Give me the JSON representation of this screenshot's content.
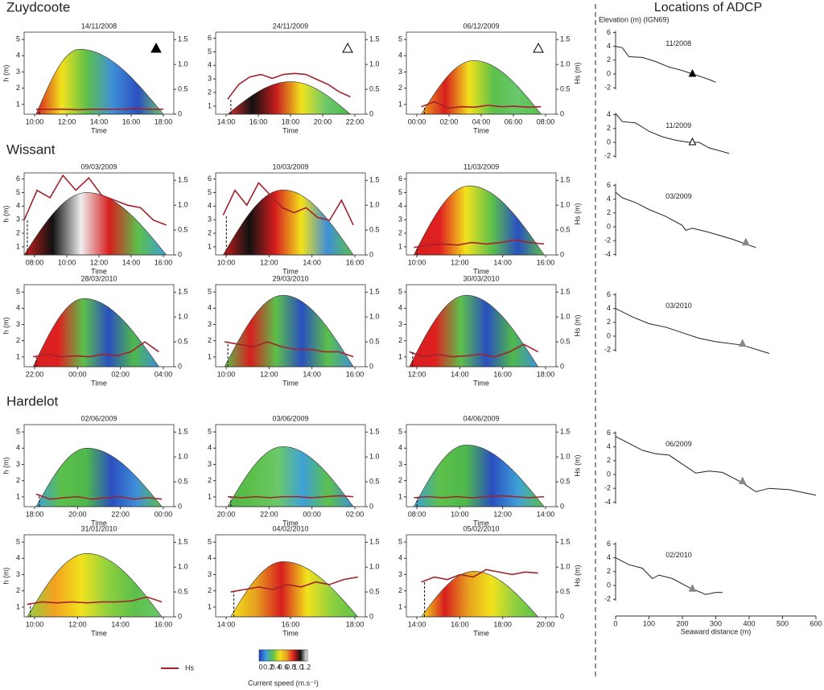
{
  "sections": [
    "Zuydcoote",
    "Wissant",
    "Hardelot"
  ],
  "panels": [
    {
      "date": "14/11/2008",
      "xticks": [
        "10:00",
        "12:00",
        "14:00",
        "16:00",
        "18:00"
      ],
      "yticks": [
        1,
        2,
        3,
        4,
        5
      ],
      "peak": 4.4,
      "env": [
        0.08,
        0.37,
        0.93
      ],
      "colors": [
        "#d71e1e",
        "#f2e21c",
        "#5cc04a",
        "#3f8fd8",
        "#2a4fc0",
        "#6cc86a"
      ],
      "marker": "filled",
      "hs": [
        0.1,
        0.1,
        0.1,
        0.09,
        0.1,
        0.1,
        0.1,
        0.11,
        0.1,
        0.1
      ]
    },
    {
      "date": "24/11/2009",
      "xticks": [
        "14:00",
        "16:00",
        "18:00",
        "20:00",
        "22:00"
      ],
      "yticks": [
        1,
        2,
        3,
        4,
        5,
        6
      ],
      "peak": 2.8,
      "env": [
        0.08,
        0.5,
        0.9
      ],
      "colors": [
        "#e03030",
        "#111111",
        "#c81e1e",
        "#f2e21c",
        "#6cc86a",
        "#4fb84c"
      ],
      "marker": "open",
      "hs": [
        0.3,
        0.6,
        0.75,
        0.8,
        0.72,
        0.8,
        0.82,
        0.8,
        0.7,
        0.6,
        0.45,
        0.35
      ]
    },
    {
      "date": "06/12/2009",
      "xticks": [
        "00:00",
        "02:00",
        "04:00",
        "06:00",
        "08:00"
      ],
      "yticks": [
        1,
        2,
        3,
        4,
        5
      ],
      "peak": 3.7,
      "env": [
        0.1,
        0.45,
        0.9
      ],
      "colors": [
        "#e8a020",
        "#d71e1e",
        "#f2e21c",
        "#5cc04a",
        "#68c86c",
        "#5cc04a"
      ],
      "marker": "open",
      "hs": [
        0.15,
        0.25,
        0.12,
        0.15,
        0.14,
        0.18,
        0.15,
        0.16,
        0.14,
        0.15
      ]
    },
    {
      "date": "09/03/2009",
      "xticks": [
        "08:00",
        "10:00",
        "12:00",
        "14:00",
        "16:00"
      ],
      "yticks": [
        1,
        2,
        3,
        4,
        5,
        6
      ],
      "peak": 5,
      "env": [
        0.0,
        0.42,
        0.95
      ],
      "colors": [
        "#c81e1e",
        "#111111",
        "#eeeeee",
        "#d71e1e",
        "#5cc04a",
        "#3f9fd8"
      ],
      "hs": [
        0.7,
        1.3,
        1.15,
        1.6,
        1.3,
        1.55,
        1.2,
        1.1,
        1.0,
        0.95,
        0.7,
        0.6
      ]
    },
    {
      "date": "10/03/2009",
      "xticks": [
        "10:00",
        "12:00",
        "14:00",
        "16:00"
      ],
      "yticks": [
        1,
        2,
        3,
        4,
        5,
        6
      ],
      "peak": 5.2,
      "env": [
        0.05,
        0.45,
        0.92
      ],
      "colors": [
        "#c81e1e",
        "#111111",
        "#d71e1e",
        "#f2e21c",
        "#3f8fd8",
        "#5cc04a"
      ],
      "hs": [
        0.8,
        1.3,
        1.0,
        1.45,
        1.2,
        0.95,
        0.85,
        0.95,
        0.75,
        0.7,
        1.1,
        0.6
      ]
    },
    {
      "date": "11/03/2009",
      "xticks": [
        "10:00",
        "12:00",
        "14:00",
        "16:00"
      ],
      "yticks": [
        1,
        2,
        3,
        4,
        5,
        6
      ],
      "peak": 5.5,
      "env": [
        0.05,
        0.42,
        0.92
      ],
      "colors": [
        "#d71e1e",
        "#e02020",
        "#f2e21c",
        "#5cc04a",
        "#2a4fc0",
        "#5cc04a"
      ],
      "hs": [
        0.15,
        0.2,
        0.22,
        0.2,
        0.25,
        0.22,
        0.25,
        0.3,
        0.25,
        0.22
      ]
    },
    {
      "date": "28/03/2010",
      "xticks": [
        "22:00",
        "00:00",
        "02:00",
        "04:00"
      ],
      "yticks": [
        1,
        2,
        3,
        4,
        5
      ],
      "peak": 4.6,
      "env": [
        0.06,
        0.4,
        0.9
      ],
      "colors": [
        "#d71e1e",
        "#e02020",
        "#5cc04a",
        "#2a4fc0",
        "#4fb84c",
        "#3f8fd8"
      ],
      "hs": [
        0.2,
        0.25,
        0.2,
        0.22,
        0.2,
        0.25,
        0.22,
        0.3,
        0.5,
        0.3
      ]
    },
    {
      "date": "29/03/2010",
      "xticks": [
        "10:00",
        "12:00",
        "14:00",
        "16:00"
      ],
      "yticks": [
        1,
        2,
        3,
        4,
        5
      ],
      "peak": 4.8,
      "env": [
        0.06,
        0.45,
        0.92
      ],
      "colors": [
        "#5cc04a",
        "#d71e1e",
        "#5cc04a",
        "#2a4fc0",
        "#5cc04a",
        "#3f8fd8"
      ],
      "hs": [
        0.5,
        0.45,
        0.4,
        0.5,
        0.4,
        0.35,
        0.35,
        0.3,
        0.3,
        0.2
      ]
    },
    {
      "date": "30/03/2010",
      "xticks": [
        "12:00",
        "14:00",
        "16:00",
        "18:00"
      ],
      "yticks": [
        1,
        2,
        3,
        4,
        5
      ],
      "peak": 4.8,
      "env": [
        0.02,
        0.4,
        0.88
      ],
      "colors": [
        "#d71e1e",
        "#e02020",
        "#5cc04a",
        "#2a4fc0",
        "#4fb84c",
        "#3f8fd8"
      ],
      "hs": [
        0.3,
        0.2,
        0.25,
        0.2,
        0.22,
        0.25,
        0.2,
        0.3,
        0.45,
        0.3
      ]
    },
    {
      "date": "02/06/2009",
      "xticks": [
        "18:00",
        "20:00",
        "22:00",
        "00:00"
      ],
      "yticks": [
        1,
        2,
        3,
        4,
        5
      ],
      "peak": 4.0,
      "env": [
        0.08,
        0.42,
        0.92
      ],
      "colors": [
        "#3fa0d8",
        "#5cc04a",
        "#4fb84c",
        "#2a4fc0",
        "#3f8fd8",
        "#5cc04a"
      ],
      "hs": [
        0.25,
        0.15,
        0.18,
        0.2,
        0.15,
        0.18,
        0.2,
        0.15,
        0.18,
        0.15
      ]
    },
    {
      "date": "03/06/2009",
      "xticks": [
        "20:00",
        "22:00",
        "00:00",
        "02:00"
      ],
      "yticks": [
        1,
        2,
        3,
        4,
        5
      ],
      "peak": 4.1,
      "env": [
        0.08,
        0.45,
        0.92
      ],
      "colors": [
        "#4fb84c",
        "#5cc04a",
        "#6cc86a",
        "#3fa0d8",
        "#5cc04a",
        "#3f8fd8"
      ],
      "hs": [
        0.2,
        0.18,
        0.2,
        0.18,
        0.2,
        0.2,
        0.18,
        0.2,
        0.22,
        0.2
      ]
    },
    {
      "date": "04/06/2009",
      "xticks": [
        "08:00",
        "10:00",
        "12:00",
        "14:00"
      ],
      "yticks": [
        1,
        2,
        3,
        4,
        5
      ],
      "peak": 4.2,
      "env": [
        0.05,
        0.4,
        0.92
      ],
      "colors": [
        "#3fa0d8",
        "#5cc04a",
        "#4fb84c",
        "#2a4fc0",
        "#3fa0d8",
        "#5cc04a"
      ],
      "hs": [
        0.18,
        0.2,
        0.18,
        0.2,
        0.18,
        0.2,
        0.22,
        0.2,
        0.18,
        0.2
      ]
    },
    {
      "date": "31/01/2010",
      "xticks": [
        "10:00",
        "12:00",
        "14:00",
        "16:00"
      ],
      "yticks": [
        1,
        2,
        3,
        4,
        5
      ],
      "peak": 4.3,
      "env": [
        0.02,
        0.42,
        0.92
      ],
      "colors": [
        "#8fd040",
        "#f2a020",
        "#f2e21c",
        "#8fd040",
        "#5cc04a",
        "#6cc86a"
      ],
      "hs": [
        0.25,
        0.3,
        0.28,
        0.3,
        0.28,
        0.3,
        0.3,
        0.32,
        0.4,
        0.3
      ]
    },
    {
      "date": "04/02/2010",
      "xticks": [
        "14:00",
        "16:00",
        "18:00"
      ],
      "yticks": [
        1,
        2,
        3,
        4,
        5
      ],
      "peak": 3.8,
      "env": [
        0.1,
        0.45,
        0.95
      ],
      "colors": [
        "#f2e21c",
        "#e8a020",
        "#d71e1e",
        "#f2e21c",
        "#8fd040",
        "#5cc04a"
      ],
      "hs": [
        0.5,
        0.55,
        0.6,
        0.55,
        0.65,
        0.6,
        0.7,
        0.65,
        0.75,
        0.8
      ]
    },
    {
      "date": "05/02/2010",
      "xticks": [
        "14:00",
        "16:00",
        "18:00",
        "20:00"
      ],
      "yticks": [
        1,
        2,
        3,
        4,
        5
      ],
      "peak": 3.2,
      "env": [
        0.1,
        0.45,
        0.88
      ],
      "colors": [
        "#f2e21c",
        "#d71e1e",
        "#e8a020",
        "#f2e21c",
        "#8fd040",
        "#5cc04a"
      ],
      "hs": [
        0.7,
        0.8,
        0.75,
        0.85,
        0.8,
        0.95,
        0.9,
        0.85,
        0.9,
        0.88
      ]
    }
  ],
  "hs_ticks": [
    "0",
    "0.5",
    "1.0",
    "1.5"
  ],
  "h_label": "h (m)",
  "hs_label": "Hs (m)",
  "time_label": "Time",
  "right": {
    "title": "Locations of ADCP",
    "ylabel": "Elevation (m) (IGN69)",
    "xlabel": "Seaward distance (m)",
    "xticks": [
      0,
      100,
      200,
      300,
      400,
      500,
      600
    ],
    "profiles": [
      {
        "label": "11/2008",
        "yticks": [
          6,
          4,
          2,
          0,
          -2
        ],
        "marker": [
          230,
          0
        ],
        "mstyle": "filled",
        "pts": [
          [
            0,
            4
          ],
          [
            20,
            3.8
          ],
          [
            40,
            2.5
          ],
          [
            80,
            2.4
          ],
          [
            120,
            1.8
          ],
          [
            160,
            1
          ],
          [
            200,
            0.5
          ],
          [
            230,
            0
          ],
          [
            250,
            -0.3
          ],
          [
            280,
            -0.8
          ],
          [
            300,
            -1.2
          ]
        ]
      },
      {
        "label": "11/2009",
        "yticks": [
          4,
          2,
          0,
          -2
        ],
        "marker": [
          230,
          0
        ],
        "mstyle": "open",
        "pts": [
          [
            0,
            4.2
          ],
          [
            20,
            3
          ],
          [
            60,
            2.8
          ],
          [
            100,
            1.6
          ],
          [
            140,
            0.8
          ],
          [
            180,
            0.3
          ],
          [
            220,
            0
          ],
          [
            250,
            0
          ],
          [
            280,
            -0.8
          ],
          [
            340,
            -1.6
          ]
        ]
      },
      {
        "label": "03/2009",
        "yticks": [
          6,
          4,
          2,
          0,
          -2,
          -4
        ],
        "marker": [
          390,
          -2.3
        ],
        "mstyle": "grey",
        "pts": [
          [
            0,
            5
          ],
          [
            20,
            4.2
          ],
          [
            60,
            3.5
          ],
          [
            100,
            2.5
          ],
          [
            150,
            1.5
          ],
          [
            200,
            0.2
          ],
          [
            210,
            -0.5
          ],
          [
            230,
            -0.2
          ],
          [
            280,
            -0.8
          ],
          [
            350,
            -1.8
          ],
          [
            390,
            -2.5
          ],
          [
            420,
            -3
          ]
        ]
      },
      {
        "label": "03/2010",
        "yticks": [
          6,
          4,
          2,
          0,
          -2
        ],
        "marker": [
          380,
          -1.1
        ],
        "mstyle": "grey",
        "pts": [
          [
            0,
            4
          ],
          [
            50,
            2.8
          ],
          [
            100,
            1.8
          ],
          [
            150,
            1.3
          ],
          [
            200,
            0.5
          ],
          [
            250,
            -0.3
          ],
          [
            300,
            -0.8
          ],
          [
            380,
            -1.3
          ],
          [
            460,
            -2.5
          ]
        ]
      },
      {
        "label": "06/2009",
        "yticks": [
          6,
          4,
          2,
          0,
          -2,
          -4
        ],
        "marker": [
          380,
          -1
        ],
        "mstyle": "grey",
        "pts": [
          [
            0,
            5.5
          ],
          [
            40,
            4.5
          ],
          [
            80,
            3.5
          ],
          [
            120,
            3
          ],
          [
            160,
            2.8
          ],
          [
            200,
            1.5
          ],
          [
            240,
            0.2
          ],
          [
            280,
            0.5
          ],
          [
            320,
            0.3
          ],
          [
            380,
            -1.2
          ],
          [
            420,
            -2.5
          ],
          [
            460,
            -2
          ],
          [
            520,
            -2.2
          ],
          [
            600,
            -3
          ]
        ]
      },
      {
        "label": "02/2010",
        "yticks": [
          6,
          4,
          2,
          0,
          -2
        ],
        "marker": [
          230,
          -0.5
        ],
        "mstyle": "grey",
        "pts": [
          [
            0,
            4
          ],
          [
            40,
            3
          ],
          [
            80,
            2.5
          ],
          [
            110,
            1
          ],
          [
            130,
            1.5
          ],
          [
            170,
            1
          ],
          [
            220,
            -0.3
          ],
          [
            270,
            -1.3
          ],
          [
            300,
            -1
          ],
          [
            320,
            -1
          ]
        ]
      }
    ]
  },
  "legend": {
    "hs": "Hs",
    "colorbar_ticks": [
      "0",
      "0.2",
      "0.4",
      "0.6",
      "0.8",
      "1.0",
      "1.2"
    ],
    "colorbar_label": "Current speed (m.s⁻¹)"
  }
}
